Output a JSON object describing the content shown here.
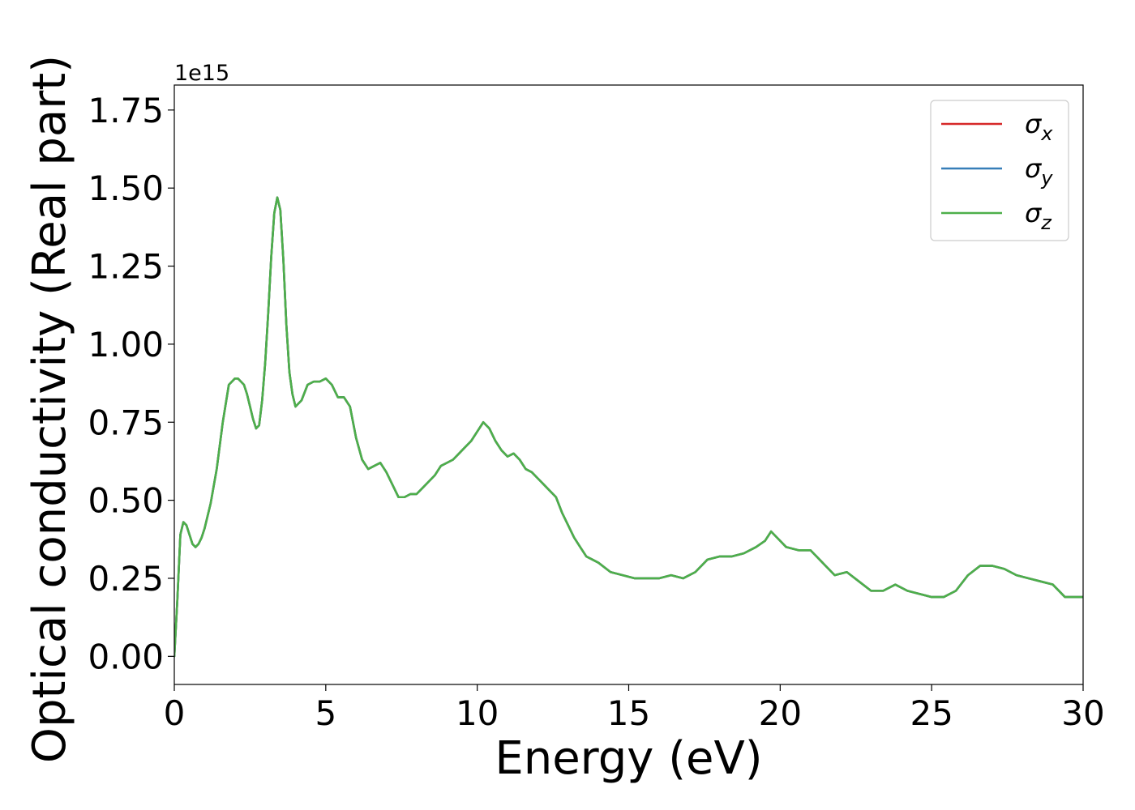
{
  "chart_data": {
    "type": "line",
    "xlabel": "Energy (eV)",
    "ylabel": "Optical conductivity (Real part)",
    "offset_text": "1e15",
    "xlim": [
      0,
      30
    ],
    "ylim": [
      -0.09,
      1.83
    ],
    "y_scale_factor": 1000000000000000.0,
    "xticks": [
      0,
      5,
      10,
      15,
      20,
      25,
      30
    ],
    "xtick_labels": [
      "0",
      "5",
      "10",
      "15",
      "20",
      "25",
      "30"
    ],
    "yticks": [
      0.0,
      0.25,
      0.5,
      0.75,
      1.0,
      1.25,
      1.5,
      1.75
    ],
    "ytick_labels": [
      "0.00",
      "0.25",
      "0.50",
      "0.75",
      "1.00",
      "1.25",
      "1.50",
      "1.75"
    ],
    "grid": false,
    "legend_position": "top-right",
    "legend": [
      {
        "symbol": "σ",
        "subscript": "x",
        "color": "#d62728"
      },
      {
        "symbol": "σ",
        "subscript": "y",
        "color": "#377eb8"
      },
      {
        "symbol": "σ",
        "subscript": "z",
        "color": "#4daf4a"
      }
    ],
    "series": [
      {
        "legend_index": 0,
        "color": "#d62728"
      },
      {
        "legend_index": 1,
        "color": "#377eb8"
      },
      {
        "legend_index": 2,
        "color": "#4daf4a"
      }
    ],
    "x": [
      0,
      0.1,
      0.2,
      0.3,
      0.4,
      0.5,
      0.6,
      0.7,
      0.8,
      0.9,
      1.0,
      1.2,
      1.4,
      1.6,
      1.8,
      2.0,
      2.1,
      2.2,
      2.3,
      2.4,
      2.5,
      2.6,
      2.7,
      2.8,
      2.9,
      3.0,
      3.1,
      3.2,
      3.3,
      3.4,
      3.5,
      3.6,
      3.7,
      3.8,
      3.9,
      4.0,
      4.2,
      4.4,
      4.6,
      4.8,
      5.0,
      5.2,
      5.4,
      5.6,
      5.8,
      6.0,
      6.2,
      6.4,
      6.6,
      6.8,
      7.0,
      7.2,
      7.4,
      7.6,
      7.8,
      8.0,
      8.2,
      8.4,
      8.6,
      8.8,
      9.0,
      9.2,
      9.4,
      9.6,
      9.8,
      10.0,
      10.2,
      10.4,
      10.6,
      10.8,
      11.0,
      11.2,
      11.4,
      11.6,
      11.8,
      12.0,
      12.2,
      12.4,
      12.6,
      12.8,
      13.0,
      13.2,
      13.4,
      13.6,
      13.8,
      14.0,
      14.4,
      14.8,
      15.2,
      15.6,
      16.0,
      16.4,
      16.8,
      17.2,
      17.6,
      18.0,
      18.4,
      18.8,
      19.2,
      19.5,
      19.7,
      19.9,
      20.2,
      20.6,
      21.0,
      21.4,
      21.8,
      22.2,
      22.6,
      23.0,
      23.4,
      23.8,
      24.2,
      24.6,
      25.0,
      25.4,
      25.8,
      26.2,
      26.6,
      27.0,
      27.4,
      27.8,
      28.2,
      28.6,
      29.0,
      29.4,
      29.8,
      30.0
    ],
    "y": [
      0.0,
      0.18,
      0.39,
      0.43,
      0.42,
      0.39,
      0.36,
      0.35,
      0.36,
      0.38,
      0.41,
      0.49,
      0.6,
      0.75,
      0.87,
      0.89,
      0.89,
      0.88,
      0.87,
      0.84,
      0.8,
      0.76,
      0.73,
      0.74,
      0.82,
      0.94,
      1.1,
      1.28,
      1.42,
      1.47,
      1.43,
      1.27,
      1.06,
      0.91,
      0.84,
      0.8,
      0.82,
      0.87,
      0.88,
      0.88,
      0.89,
      0.87,
      0.83,
      0.83,
      0.8,
      0.7,
      0.63,
      0.6,
      0.61,
      0.62,
      0.59,
      0.55,
      0.51,
      0.51,
      0.52,
      0.52,
      0.54,
      0.56,
      0.58,
      0.61,
      0.62,
      0.63,
      0.65,
      0.67,
      0.69,
      0.72,
      0.75,
      0.73,
      0.69,
      0.66,
      0.64,
      0.65,
      0.63,
      0.6,
      0.59,
      0.57,
      0.55,
      0.53,
      0.51,
      0.46,
      0.42,
      0.38,
      0.35,
      0.32,
      0.31,
      0.3,
      0.27,
      0.26,
      0.25,
      0.25,
      0.25,
      0.26,
      0.25,
      0.27,
      0.31,
      0.32,
      0.32,
      0.33,
      0.35,
      0.37,
      0.4,
      0.38,
      0.35,
      0.34,
      0.34,
      0.3,
      0.26,
      0.27,
      0.24,
      0.21,
      0.21,
      0.23,
      0.21,
      0.2,
      0.19,
      0.19,
      0.21,
      0.26,
      0.29,
      0.29,
      0.28,
      0.26,
      0.25,
      0.24,
      0.23,
      0.19,
      0.19,
      0.19
    ]
  }
}
